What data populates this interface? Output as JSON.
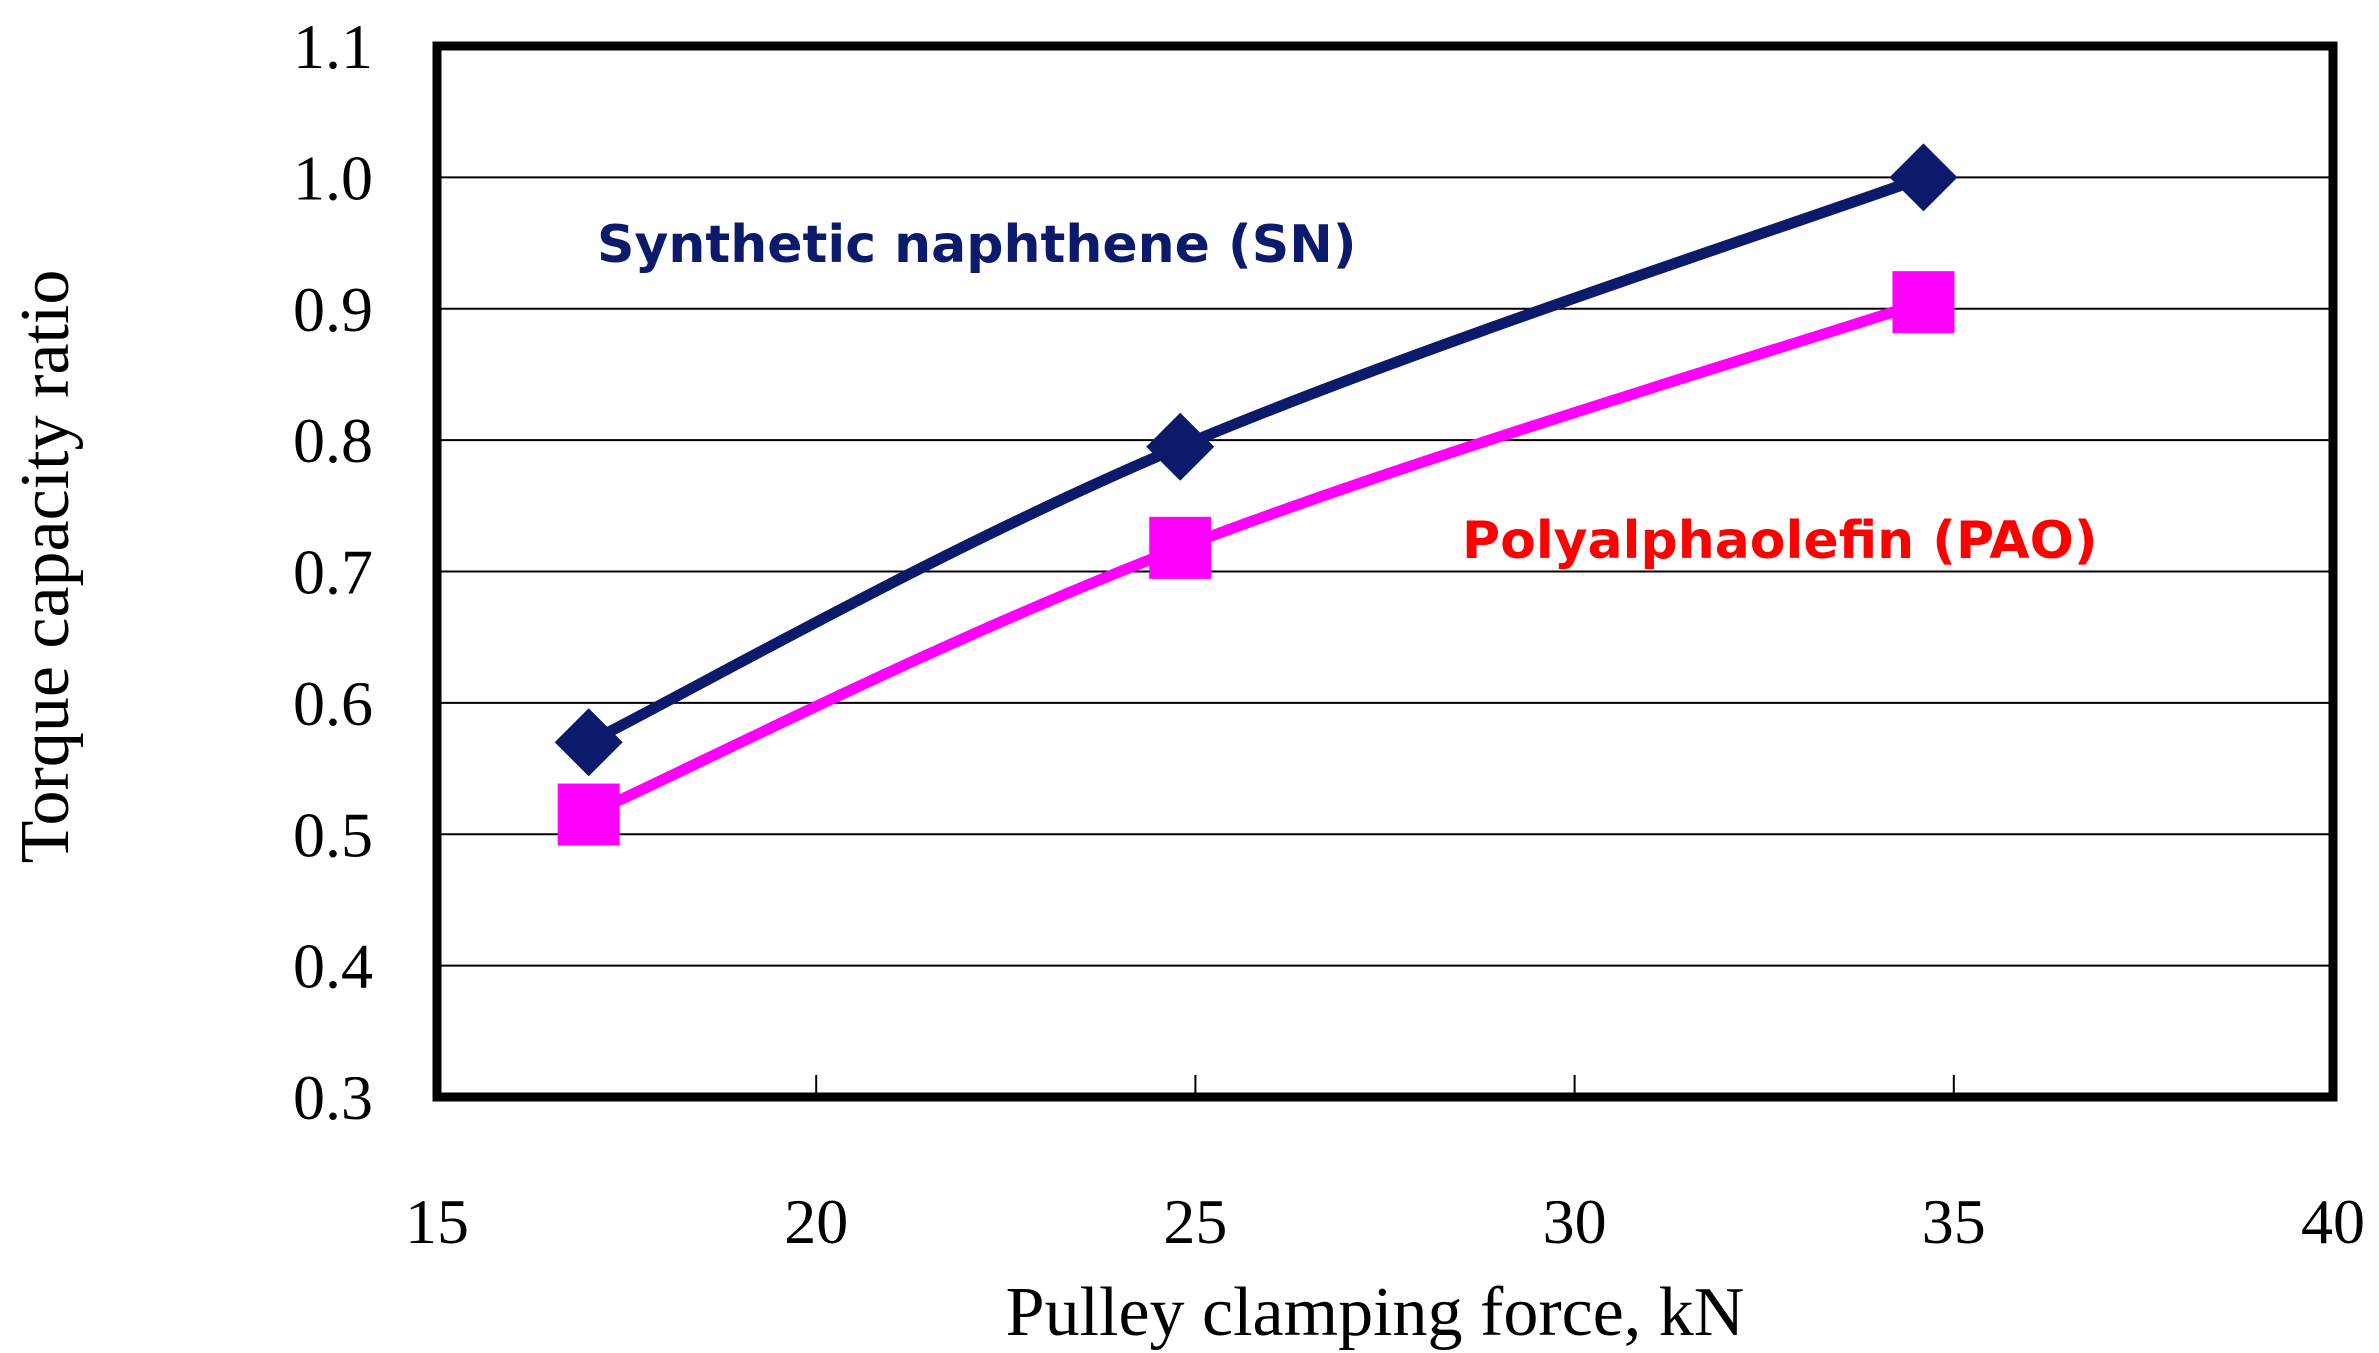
{
  "chart_data": {
    "type": "line",
    "title": "",
    "xlabel": "Pulley clamping force, kN",
    "ylabel": "Torque capacity ratio",
    "xlim": [
      15,
      40
    ],
    "ylim": [
      0.3,
      1.1
    ],
    "x_ticks": [
      "15",
      "20",
      "25",
      "30",
      "35",
      "40"
    ],
    "y_ticks": [
      "0.3",
      "0.4",
      "0.5",
      "0.6",
      "0.7",
      "0.8",
      "0.9",
      "1.0",
      "1.1"
    ],
    "grid": "horizontal",
    "series": [
      {
        "name": "Synthetic naphthene (SN)",
        "color": "#0b1a6b",
        "marker": "diamond",
        "x": [
          17,
          24.8,
          34.6
        ],
        "y": [
          0.57,
          0.795,
          1.0
        ]
      },
      {
        "name": "Polyalphaolefin (PAO)",
        "color": "#ff00ff",
        "label_color": "#ff0000",
        "marker": "square",
        "x": [
          17,
          24.8,
          34.6
        ],
        "y": [
          0.515,
          0.718,
          0.905
        ]
      }
    ]
  }
}
